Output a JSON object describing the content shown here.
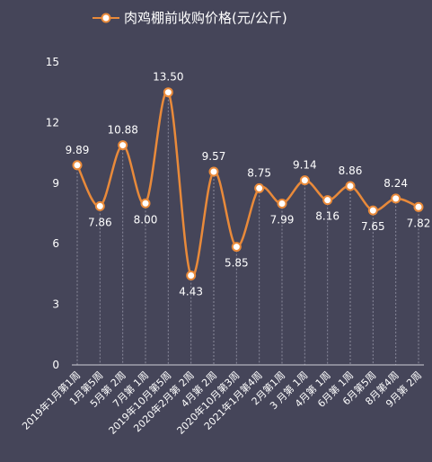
{
  "chart_data": {
    "type": "line",
    "title": "",
    "xlabel": "",
    "ylabel": "",
    "ylim": [
      0,
      15
    ],
    "yticks": [
      0,
      3,
      6,
      9,
      12,
      15
    ],
    "grid": "vertical dashed lines at each category",
    "legend": "top-center",
    "colors": {
      "line": "#e98a3a",
      "marker_fill": "#ffffff",
      "background": "#454559"
    },
    "categories": [
      "2019年1月第1周",
      "1月第5周",
      "5月第 2周",
      "7月第 1周",
      "2019年10月第5周",
      "2020年2月第 2周",
      "4月第 2周",
      "2020年10月第3周",
      "2021年1月第4周",
      "2月第1周",
      "3 月第 1周",
      "4月第 1周",
      "6月第 1周",
      "6月第5周",
      "8月第4周",
      "9月第 2周"
    ],
    "series": [
      {
        "name": "肉鸡棚前收购价格(元/公斤)",
        "values": [
          9.89,
          7.86,
          10.88,
          8.0,
          13.5,
          4.43,
          9.57,
          5.85,
          8.75,
          7.99,
          9.14,
          8.16,
          8.86,
          7.65,
          8.24,
          7.82
        ],
        "labels": [
          "9.89",
          "7.86",
          "10.88",
          "8.00",
          "13.50",
          "4.43",
          "9.57",
          "5.85",
          "8.75",
          "7.99",
          "9.14",
          "8.16",
          "8.86",
          "7.65",
          "8.24",
          "7.82"
        ],
        "label_position": [
          "above",
          "below",
          "above",
          "below",
          "above",
          "below",
          "above",
          "below",
          "above",
          "below",
          "above",
          "below",
          "above",
          "below",
          "above",
          "below"
        ]
      }
    ]
  }
}
